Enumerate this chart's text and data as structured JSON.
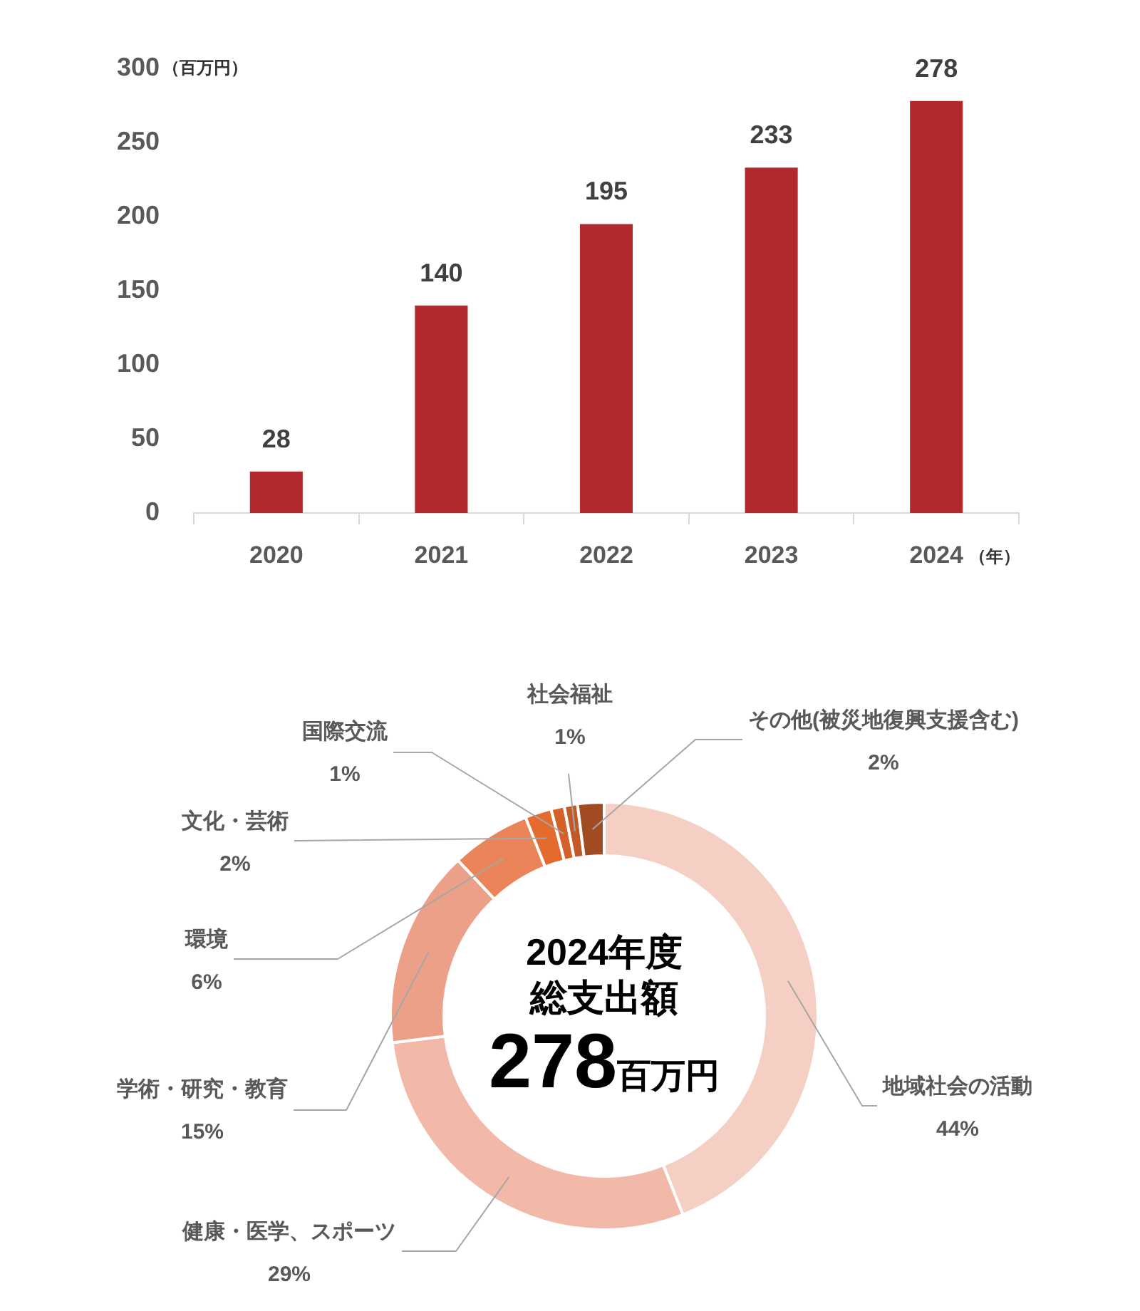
{
  "chart_data": [
    {
      "type": "bar",
      "xlabel": "（年）",
      "ylabel": "（百万円）",
      "categories": [
        "2020",
        "2021",
        "2022",
        "2023",
        "2024"
      ],
      "values": [
        28,
        140,
        195,
        233,
        278
      ],
      "color": "#b22a2e",
      "ylim": [
        0,
        300
      ],
      "yticks": [
        0,
        50,
        100,
        150,
        200,
        250,
        300
      ],
      "data_labels": true
    },
    {
      "type": "donut",
      "categories": [
        "地域社会の活動",
        "健康・医学、スポーツ",
        "学術・研究・教育",
        "環境",
        "文化・芸術",
        "国際交流",
        "社会福祉",
        "その他(被災地復興支援含む)"
      ],
      "values": [
        44,
        29,
        15,
        6,
        2,
        1,
        1,
        2
      ],
      "colors": [
        "#f5cfc4",
        "#f2b8a8",
        "#eca088",
        "#ec845a",
        "#e36b2e",
        "#d5612a",
        "#c25a27",
        "#a04b22"
      ],
      "value_labels": [
        "44%",
        "29%",
        "15%",
        "6%",
        "2%",
        "1%",
        "1%",
        "2%"
      ],
      "annotations": [
        "2024年度",
        "総支出額",
        "278百万円"
      ]
    }
  ]
}
